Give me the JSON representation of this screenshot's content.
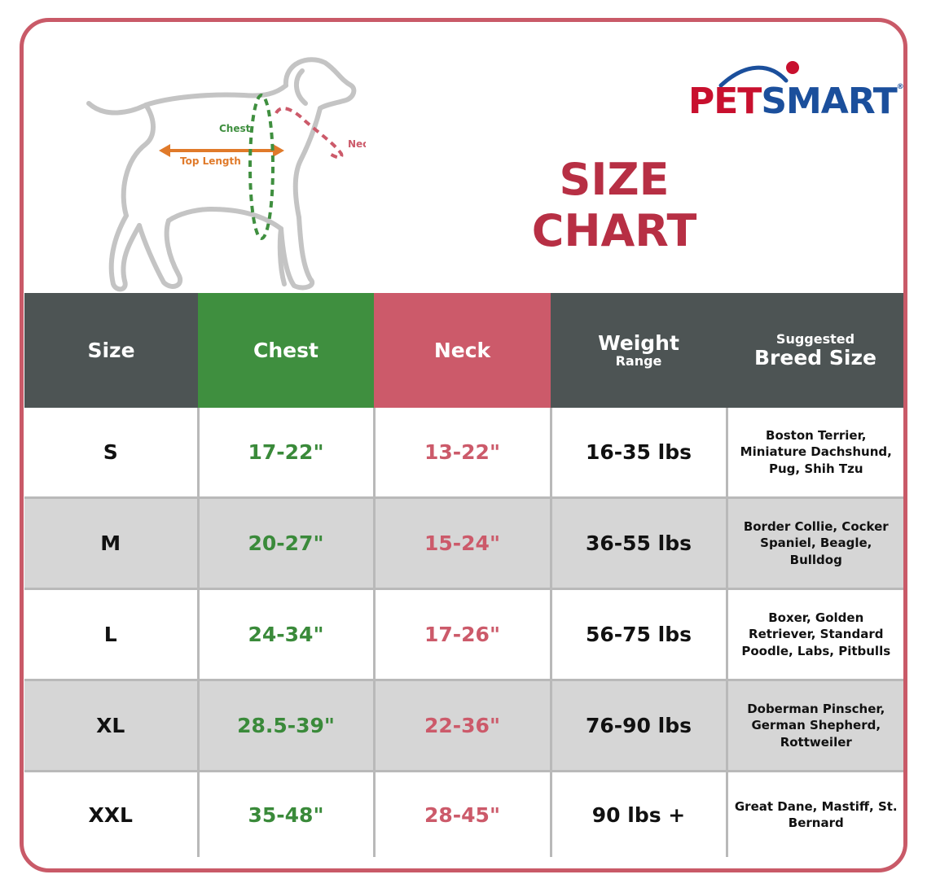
{
  "brand": {
    "logo_text_pet": "PET",
    "logo_text_smart": "SMART",
    "logo_tm": "®",
    "colors": {
      "red": "#c8102e",
      "blue": "#1b4f9c"
    }
  },
  "title": "SIZE CHART",
  "diagram": {
    "labels": {
      "chest": "Chest",
      "neck": "Neck",
      "top_length": "Top Length"
    },
    "colors": {
      "chest": "#3f8f3f",
      "neck": "#cc5a6a",
      "top_length": "#e07a2a",
      "dog_outline": "#c4c4c4"
    }
  },
  "colors": {
    "frame": "#c95a68",
    "header_dark": "#4d5454",
    "header_green": "#3f8f3f",
    "header_pink": "#cc5a6a",
    "row_shade": "#d6d6d6"
  },
  "table": {
    "headers": {
      "size": "Size",
      "chest": "Chest",
      "neck": "Neck",
      "weight_main": "Weight",
      "weight_sub": "Range",
      "breed_sub": "Suggested",
      "breed_main": "Breed Size"
    },
    "rows": [
      {
        "size": "S",
        "chest": "17-22\"",
        "neck": "13-22\"",
        "weight": "16-35 lbs",
        "breed": "Boston Terrier, Miniature Dachshund, Pug, Shih Tzu"
      },
      {
        "size": "M",
        "chest": "20-27\"",
        "neck": "15-24\"",
        "weight": "36-55 lbs",
        "breed": "Border Collie, Cocker Spaniel, Beagle, Bulldog"
      },
      {
        "size": "L",
        "chest": "24-34\"",
        "neck": "17-26\"",
        "weight": "56-75 lbs",
        "breed": "Boxer, Golden Retriever, Standard Poodle, Labs, Pitbulls"
      },
      {
        "size": "XL",
        "chest": "28.5-39\"",
        "neck": "22-36\"",
        "weight": "76-90 lbs",
        "breed": "Doberman Pinscher, German Shepherd, Rottweiler"
      },
      {
        "size": "XXL",
        "chest": "35-48\"",
        "neck": "28-45\"",
        "weight": "90 lbs +",
        "breed": "Great Dane, Mastiff, St. Bernard"
      }
    ]
  }
}
